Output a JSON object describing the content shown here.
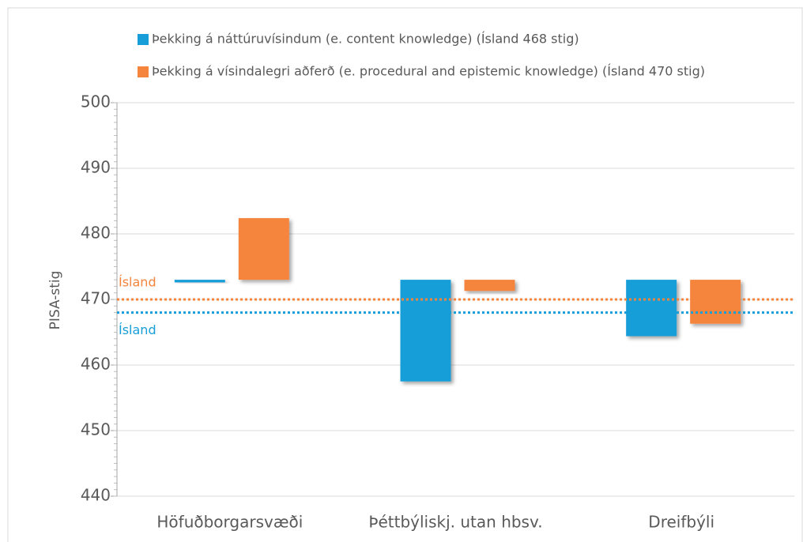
{
  "chart_data": {
    "type": "floating_bar",
    "categories": [
      "Höfuðborgarsvæði",
      "Þéttbýliskj. utan hbsv.",
      "Dreifbýli"
    ],
    "base": 473,
    "series": [
      {
        "name": "Þekking á náttúruvísindum (e. content knowledge) (Ísland 468 stig)",
        "color": "#179ed8",
        "values": [
          472.6,
          457.5,
          464.4
        ]
      },
      {
        "name": "Þekking á vísindalegri aðferð (e. procedural and epistemic knowledge) (Ísland 470 stig)",
        "color": "#f5843c",
        "values": [
          482.4,
          471.3,
          466.3
        ]
      }
    ],
    "reference_lines": [
      {
        "label": "Ísland",
        "value": 470,
        "color": "#f5843c"
      },
      {
        "label": "Ísland",
        "value": 468,
        "color": "#179ed8"
      }
    ],
    "ylabel": "PISA-stig",
    "ylim": [
      440,
      500
    ],
    "yticks": [
      440,
      450,
      460,
      470,
      480,
      490,
      500
    ],
    "y_minor_step": 1,
    "grid": true,
    "legend": "top"
  }
}
